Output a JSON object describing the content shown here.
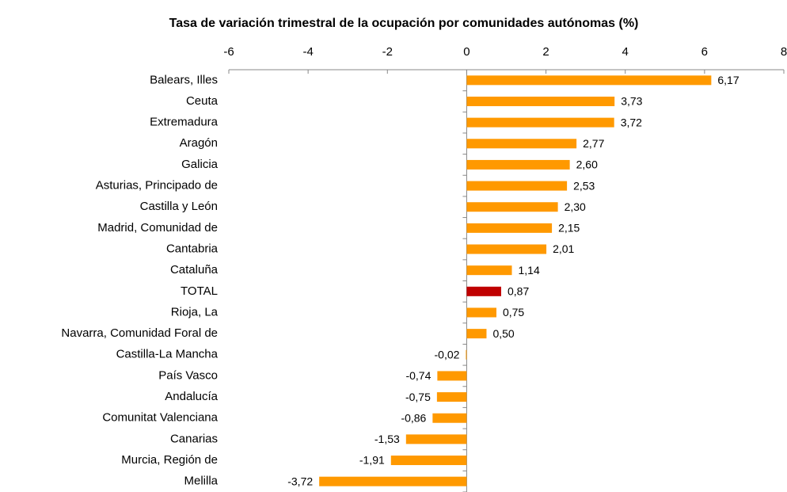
{
  "chart_data": {
    "type": "hbar",
    "title": "Tasa de variación trimestral de la ocupación por comunidades autónomas (%)",
    "categories": [
      "Balears, Illes",
      "Ceuta",
      "Extremadura",
      "Aragón",
      "Galicia",
      "Asturias, Principado de",
      "Castilla y León",
      "Madrid, Comunidad de",
      "Cantabria",
      "Cataluña",
      "TOTAL",
      "Rioja, La",
      "Navarra, Comunidad Foral de",
      "Castilla-La Mancha",
      "País Vasco",
      "Andalucía",
      "Comunitat Valenciana",
      "Canarias",
      "Murcia, Región de",
      "Melilla"
    ],
    "values": [
      6.17,
      3.73,
      3.72,
      2.77,
      2.6,
      2.53,
      2.3,
      2.15,
      2.01,
      1.14,
      0.87,
      0.75,
      0.5,
      -0.02,
      -0.74,
      -0.75,
      -0.86,
      -1.53,
      -1.91,
      -3.72
    ],
    "value_labels": [
      "6,17",
      "3,73",
      "3,72",
      "2,77",
      "2,60",
      "2,53",
      "2,30",
      "2,15",
      "2,01",
      "1,14",
      "0,87",
      "0,75",
      "0,50",
      "-0,02",
      "-0,74",
      "-0,75",
      "-0,86",
      "-1,53",
      "-1,91",
      "-3,72"
    ],
    "colors": [
      "#ff9900",
      "#ff9900",
      "#ff9900",
      "#ff9900",
      "#ff9900",
      "#ff9900",
      "#ff9900",
      "#ff9900",
      "#ff9900",
      "#ff9900",
      "#c00000",
      "#ff9900",
      "#ff9900",
      "#ff9900",
      "#ff9900",
      "#ff9900",
      "#ff9900",
      "#ff9900",
      "#ff9900",
      "#ff9900"
    ],
    "xlim": [
      -6,
      8
    ],
    "xticks": [
      -6,
      -4,
      -2,
      0,
      2,
      4,
      6,
      8
    ]
  }
}
